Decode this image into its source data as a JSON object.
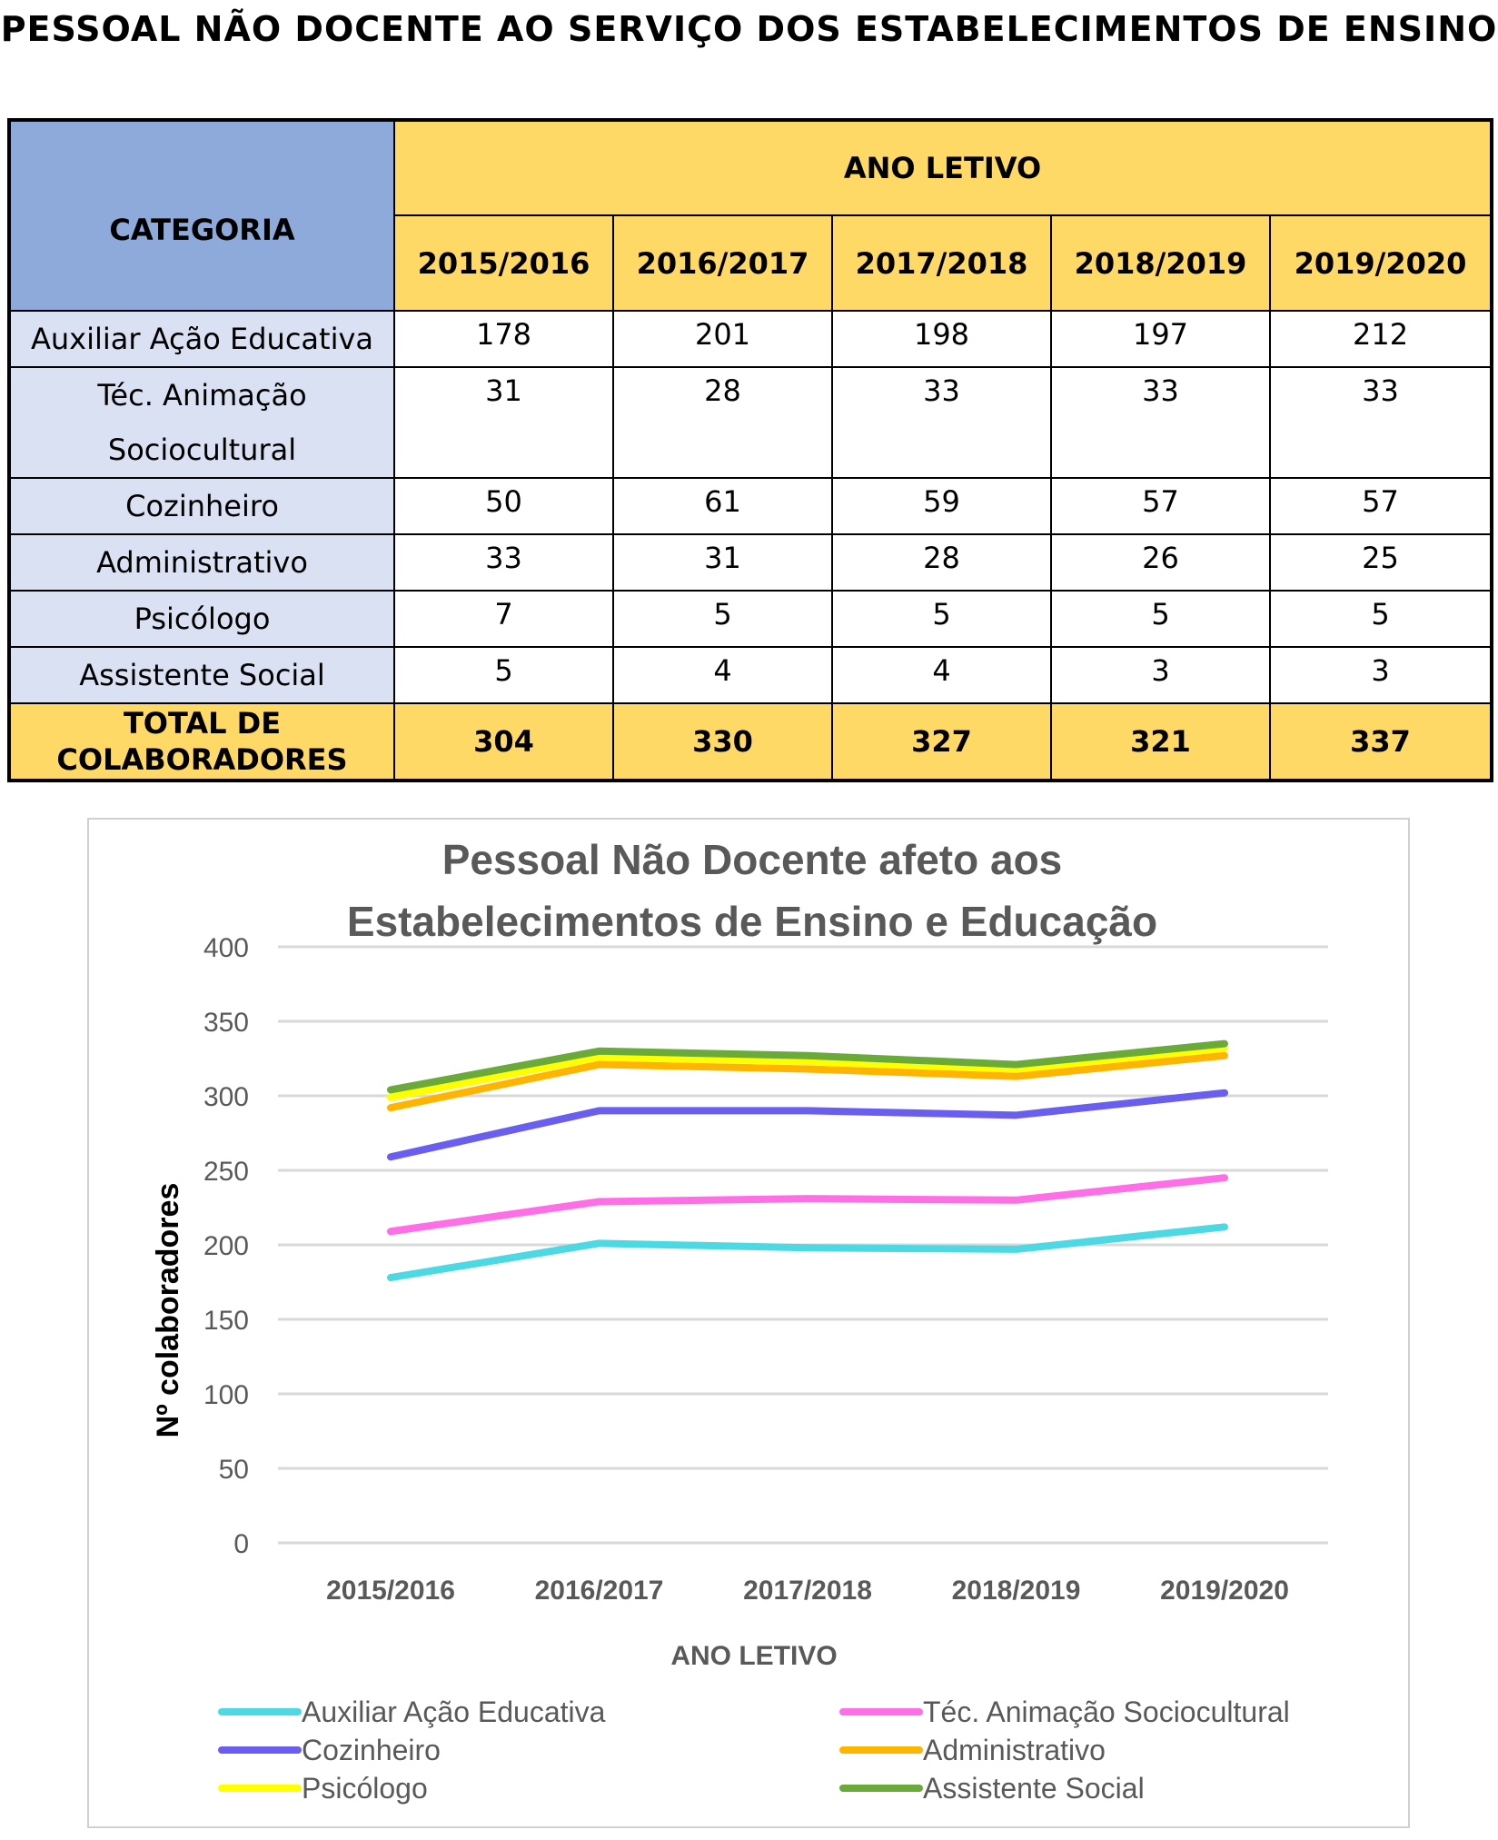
{
  "page_title": "PESSOAL NÃO DOCENTE AO SERVIÇO DOS ESTABELECIMENTOS DE ENSINO",
  "table": {
    "category_header": "CATEGORIA",
    "period_header": "ANO LETIVO",
    "years": [
      "2015/2016",
      "2016/2017",
      "2017/2018",
      "2018/2019",
      "2019/2020"
    ],
    "rows": [
      {
        "category": "Auxiliar Ação Educativa",
        "values": [
          "178",
          "201",
          "198",
          "197",
          "212"
        ]
      },
      {
        "category": "Téc. Animação Sociocultural",
        "values": [
          "31",
          "28",
          "33",
          "33",
          "33"
        ]
      },
      {
        "category": "Cozinheiro",
        "values": [
          "50",
          "61",
          "59",
          "57",
          "57"
        ]
      },
      {
        "category": "Administrativo",
        "values": [
          "33",
          "31",
          "28",
          "26",
          "25"
        ]
      },
      {
        "category": "Psicólogo",
        "values": [
          "7",
          "5",
          "5",
          "5",
          "5"
        ]
      },
      {
        "category": "Assistente Social",
        "values": [
          "5",
          "4",
          "4",
          "3",
          "3"
        ]
      }
    ],
    "total_label": "TOTAL DE COLABORADORES",
    "totals": [
      "304",
      "330",
      "327",
      "321",
      "337"
    ]
  },
  "chart_data": {
    "type": "line",
    "stacked": true,
    "title_line1": "Pessoal Não Docente afeto aos",
    "title_line2": "Estabelecimentos de Ensino e Educação",
    "xlabel": "ANO LETIVO",
    "ylabel": "Nº colaboradores",
    "categories": [
      "2015/2016",
      "2016/2017",
      "2017/2018",
      "2018/2019",
      "2019/2020"
    ],
    "ylim": [
      0,
      400
    ],
    "yticks": [
      "0",
      "50",
      "100",
      "150",
      "200",
      "250",
      "300",
      "350",
      "400"
    ],
    "grid": true,
    "legend_position": "bottom",
    "series": [
      {
        "name": "Auxiliar Ação Educativa",
        "color": "#4dd9e3",
        "values": [
          178,
          201,
          198,
          197,
          212
        ]
      },
      {
        "name": "Téc. Animação Sociocultural",
        "color": "#ff6ee6",
        "values": [
          31,
          28,
          33,
          33,
          33
        ]
      },
      {
        "name": "Cozinheiro",
        "color": "#6a5ef0",
        "values": [
          50,
          61,
          59,
          57,
          57
        ]
      },
      {
        "name": "Administrativo",
        "color": "#ffb400",
        "values": [
          33,
          31,
          28,
          26,
          25
        ]
      },
      {
        "name": "Psicólogo",
        "color": "#ffff00",
        "values": [
          7,
          5,
          5,
          5,
          5
        ]
      },
      {
        "name": "Assistente Social",
        "color": "#6aaa3a",
        "values": [
          5,
          4,
          4,
          3,
          3
        ]
      }
    ]
  }
}
